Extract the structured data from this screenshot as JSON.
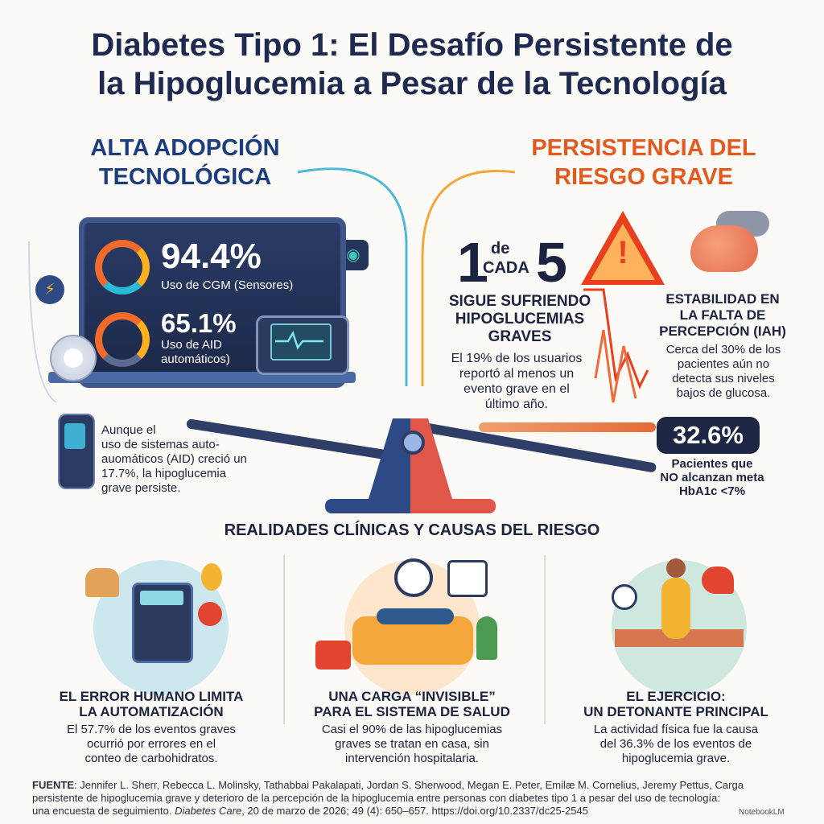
{
  "title": {
    "line1": "Diabetes Tipo 1: El Desafío Persistente de",
    "line2": "la Hipoglucemia a Pesar de la Tecnología"
  },
  "left": {
    "heading_line1": "ALTA ADOPCIÓN",
    "heading_line2": "TECNOLÓGICA",
    "stat1_value": "94.4%",
    "stat1_label": "Uso de CGM (Sensores)",
    "stat2_value": "65.1%",
    "stat2_label_line1": "Uso de AID",
    "stat2_label_line2": "automáticos)",
    "note_line1": "Aunque el",
    "note_line2": "uso de sistemas auto-",
    "note_line3": "auomáticos (AID) creció un",
    "note_line4": "17.7%, la hipoglucemia",
    "note_line5": "grave persiste."
  },
  "right": {
    "heading_line1": "PERSISTENCIA DEL",
    "heading_line2": "RIESGO GRAVE",
    "ratio_one": "1",
    "ratio_de": "de",
    "ratio_cada": "CADA",
    "ratio_five": "5",
    "warning_mark": "!",
    "severe_head_line1": "SIGUE SUFRIENDO",
    "severe_head_line2": "HIPOGLUCEMIAS",
    "severe_head_line3": "GRAVES",
    "severe_body_line1": "El 19% de los usuarios",
    "severe_body_line2": "reportó al menos un",
    "severe_body_line3": "evento grave en el",
    "severe_body_line4": "último año.",
    "iah_head_line1": "ESTABILIDAD EN",
    "iah_head_line2": "LA FALTA DE",
    "iah_head_line3": "PERCEPCIÓN (IAH)",
    "iah_body_line1": "Cerca del 30% de los",
    "iah_body_line2": "pacientes aún no",
    "iah_body_line3": "detecta sus niveles",
    "iah_body_line4": "bajos de glucosa.",
    "hba1c_value": "32.6%",
    "hba1c_caption_line1": "Pacientes que",
    "hba1c_caption_line2": "NO alcanzan meta",
    "hba1c_caption_line3": "HbA1c <7%"
  },
  "section_heading": "REALIDADES CLÍNICAS Y CAUSAS DEL RIESGO",
  "cards": [
    {
      "head_line1": "EL ERROR HUMANO LIMITA",
      "head_line2": "LA AUTOMATIZACIÓN",
      "body_line1": "El 57.7% de los eventos graves",
      "body_line2": "ocurrió por errores en el",
      "body_line3": "conteo de carbohidratos."
    },
    {
      "head_line1": "UNA CARGA “INVISIBLE”",
      "head_line2": "PARA EL SISTEMA DE SALUD",
      "body_line1": "Casi el 90% de las hipoglucemias",
      "body_line2": "graves se tratan en casa, sin",
      "body_line3": "intervención hospitalaria."
    },
    {
      "head_line1": "EL EJERCICIO:",
      "head_line2": "UN DETONANTE PRINCIPAL",
      "body_line1": "La actividad física fue la causa",
      "body_line2": "del 36.3% de los eventos de",
      "body_line3": "hipoglucemia grave."
    }
  ],
  "source": {
    "label": "FUENTE",
    "line1": ": Jennifer L. Sherr, Rebecca L. Molinsky, Tathabbai Pakalapati, Jordan S. Sherwood, Megan E. Peter, Emilæ M. Cornelius, Jeremy Pettus, Carga",
    "line2": "persistente de hipoglucemia grave y deterioro de la percepción de la hipoglucemia entre personas con diabetes tipo 1 a pesar del uso de tecnología:",
    "line3_a": "una encuesta de seguimiento. ",
    "journal": "Diabetes Care",
    "line3_b": ", 20 de marzo de 2026; 49 (4): 650–657. https://doi.org/10.2337/dc25-2545"
  },
  "brand": "NotebookLM",
  "colors": {
    "navy": "#1c2340",
    "blue_heading": "#1b3d7d",
    "orange_heading": "#e25a1f",
    "warning_red": "#e8401e"
  }
}
